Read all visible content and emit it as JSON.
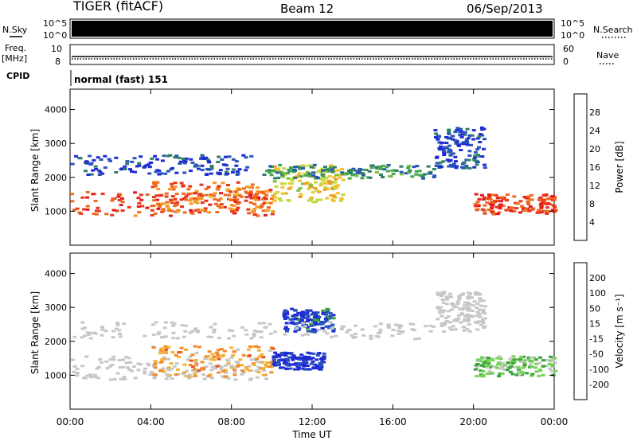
{
  "header": {
    "title": "TIGER (fitACF)",
    "beam": "Beam 12",
    "date": "06/Sep/2013"
  },
  "left_labels": {
    "nsky": "N.Sky",
    "freq_line1": "Freq.",
    "freq_line2": "[MHz]",
    "cpid": "CPID"
  },
  "right_labels": {
    "nsearch": "N.Search",
    "nave": "Nave"
  },
  "panel_ticks": {
    "noise_top": "10^5",
    "noise_bottom": "10^0",
    "freq_top": "10",
    "freq_bottom": "8",
    "nave_top": "60",
    "nave_bottom": "0"
  },
  "cpid_text": "normal (fast) 151",
  "colors": {
    "power_scale": [
      "#1f2bd6",
      "#2a55b8",
      "#2f7f63",
      "#47a54e",
      "#7cc142",
      "#c6d93b",
      "#f2c12e",
      "#f39a25",
      "#ef6a1f",
      "#e8371b",
      "#e31a1c"
    ],
    "velocity_scale": [
      "#1f2bd6",
      "#2a55b8",
      "#37a33b",
      "#7ad15a",
      "#c7c7c7",
      "#c7c7c7",
      "#f2b23a",
      "#f08a2a",
      "#e8541f",
      "#e31a1c"
    ],
    "ground_scatter": "#c7c7c7"
  },
  "chart_data": [
    {
      "type": "heatmap",
      "name": "power",
      "ylabel": "Slant Range [km]",
      "xlabel": "",
      "xlim": [
        0,
        24
      ],
      "ylim": [
        0,
        4600
      ],
      "yticks": [
        "1000",
        "2000",
        "3000",
        "4000"
      ],
      "xticks": [
        "00:00",
        "04:00",
        "08:00",
        "12:00",
        "16:00",
        "20:00",
        "00:00"
      ],
      "colorbar_label": "Power [dB]",
      "colorbar_ticks": [
        "4",
        "8",
        "12",
        "16",
        "20",
        "24",
        "28"
      ],
      "bands": [
        {
          "t0": 0.0,
          "t1": 10.0,
          "r0": 900,
          "r1": 1600,
          "level": 0.85
        },
        {
          "t0": 4.0,
          "t1": 10.0,
          "r0": 1000,
          "r1": 1900,
          "level": 0.75
        },
        {
          "t0": 10.0,
          "t1": 13.5,
          "r0": 1300,
          "r1": 2400,
          "level": 0.55
        },
        {
          "t0": 20.0,
          "t1": 24.0,
          "r0": 950,
          "r1": 1550,
          "level": 0.85
        },
        {
          "t0": 0.0,
          "t1": 9.0,
          "r0": 2100,
          "r1": 2700,
          "level": 0.1
        },
        {
          "t0": 9.5,
          "t1": 18.0,
          "r0": 2000,
          "r1": 2400,
          "level": 0.25
        },
        {
          "t0": 18.0,
          "t1": 20.5,
          "r0": 2300,
          "r1": 3500,
          "level": 0.1
        }
      ]
    },
    {
      "type": "heatmap",
      "name": "velocity",
      "ylabel": "Slant Range [km]",
      "xlabel": "Time UT",
      "xlim": [
        0,
        24
      ],
      "ylim": [
        0,
        4600
      ],
      "yticks": [
        "1000",
        "2000",
        "3000",
        "4000"
      ],
      "xticks": [
        "00:00",
        "04:00",
        "08:00",
        "12:00",
        "16:00",
        "20:00",
        "00:00"
      ],
      "colorbar_label": "Velocity [m s⁻¹]",
      "colorbar_ticks": [
        "200",
        "100",
        "50",
        "15",
        "-15",
        "-50",
        "-100",
        "-200"
      ],
      "bands": [
        {
          "t0": 0.0,
          "t1": 10.0,
          "r0": 900,
          "r1": 1600,
          "level": "gs"
        },
        {
          "t0": 4.0,
          "t1": 10.0,
          "r0": 1000,
          "r1": 1900,
          "level": 0.7
        },
        {
          "t0": 10.0,
          "t1": 12.5,
          "r0": 1200,
          "r1": 1700,
          "level": 0.05
        },
        {
          "t0": 10.5,
          "t1": 13.0,
          "r0": 2300,
          "r1": 3000,
          "level": 0.1
        },
        {
          "t0": 20.0,
          "t1": 24.0,
          "r0": 1000,
          "r1": 1600,
          "level": 0.35
        },
        {
          "t0": 0.0,
          "t1": 18.0,
          "r0": 2100,
          "r1": 2600,
          "level": "gs"
        },
        {
          "t0": 18.0,
          "t1": 20.5,
          "r0": 2300,
          "r1": 3500,
          "level": "gs"
        }
      ]
    }
  ]
}
